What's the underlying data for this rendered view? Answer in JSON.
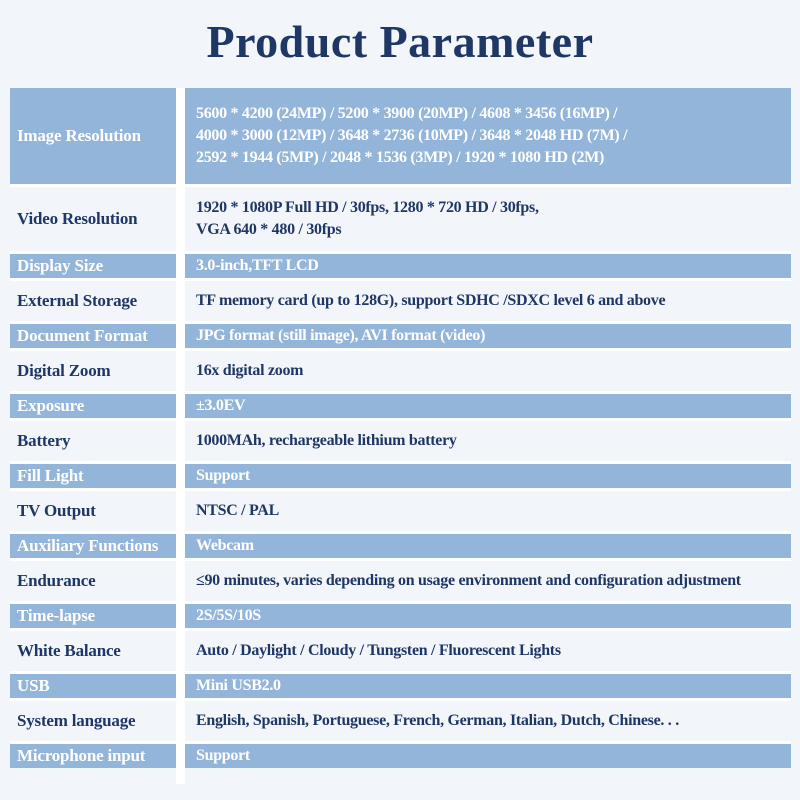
{
  "title": "Product Parameter",
  "colors": {
    "page_background": "#f2f6fb",
    "highlight_blue": "#94b5da",
    "navy_text": "#1e3765",
    "white_text": "#ffffff"
  },
  "table": {
    "rows": [
      {
        "label": "Image Resolution",
        "value": "5600 * 4200 (24MP) / 5200 * 3900 (20MP) / 4608 * 3456 (16MP) /\n4000 * 3000 (12MP) / 3648 * 2736 (10MP) / 3648 * 2048 HD (7M) /\n2592 * 1944 (5MP) / 2048 * 1536 (3MP) / 1920 * 1080 HD (2M)",
        "highlighted": true
      },
      {
        "label": "Video Resolution",
        "value": "1920 * 1080P Full HD / 30fps, 1280 * 720 HD / 30fps,\nVGA 640 * 480 / 30fps",
        "highlighted": false
      },
      {
        "label": "Display Size",
        "value": "3.0-inch,TFT LCD",
        "highlighted": true
      },
      {
        "label": "External Storage",
        "value": "TF memory card (up to 128G), support SDHC /SDXC level 6 and above",
        "highlighted": false
      },
      {
        "label": "Document Format",
        "value": "JPG format (still image), AVI format (video)",
        "highlighted": true
      },
      {
        "label": "Digital Zoom",
        "value": "16x digital zoom",
        "highlighted": false
      },
      {
        "label": "Exposure",
        "value": "±3.0EV",
        "highlighted": true
      },
      {
        "label": "Battery",
        "value": "1000MAh, rechargeable lithium battery",
        "highlighted": false
      },
      {
        "label": "Fill Light",
        "value": "Support",
        "highlighted": true
      },
      {
        "label": "TV Output",
        "value": "NTSC / PAL",
        "highlighted": false
      },
      {
        "label": "Auxiliary Functions",
        "value": "Webcam",
        "highlighted": true
      },
      {
        "label": "Endurance",
        "value": "≤90 minutes, varies depending on usage environment and configuration adjustment",
        "highlighted": false
      },
      {
        "label": "Time-lapse",
        "value": "2S/5S/10S",
        "highlighted": true
      },
      {
        "label": "White Balance",
        "value": "Auto / Daylight / Cloudy / Tungsten / Fluorescent Lights",
        "highlighted": false
      },
      {
        "label": "USB",
        "value": "Mini USB2.0",
        "highlighted": true
      },
      {
        "label": "System language",
        "value": "English, Spanish, Portuguese, French, German, Italian, Dutch, Chinese. . .",
        "highlighted": false
      },
      {
        "label": "Microphone input",
        "value": "Support",
        "highlighted": true
      }
    ]
  }
}
